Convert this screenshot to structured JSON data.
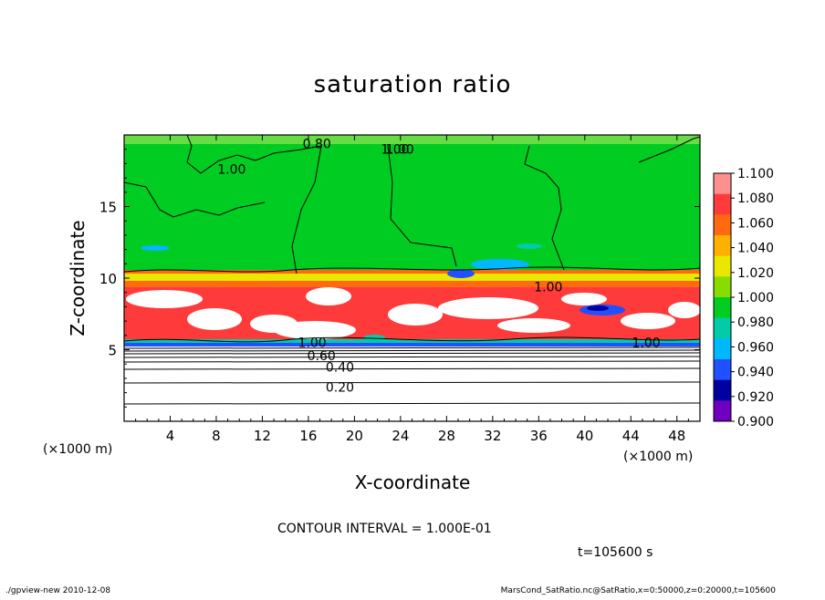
{
  "chart_data": {
    "type": "heatmap",
    "title": "saturation ratio",
    "xlabel": "X-coordinate",
    "ylabel": "Z-coordinate",
    "x_unit": "(×1000 m)",
    "y_unit": "(×1000 m)",
    "xlim": [
      0,
      50
    ],
    "ylim": [
      0,
      20
    ],
    "x_ticks": [
      "4",
      "8",
      "12",
      "16",
      "20",
      "24",
      "28",
      "32",
      "36",
      "40",
      "44",
      "48"
    ],
    "y_ticks": [
      "5",
      "10",
      "15"
    ],
    "colorbar": {
      "range": [
        0.9,
        1.1
      ],
      "labels": [
        "1.100",
        "1.080",
        "1.060",
        "1.040",
        "1.020",
        "1.000",
        "0.980",
        "0.960",
        "0.940",
        "0.920",
        "0.900"
      ],
      "colors": [
        "#ff9090",
        "#ff3a3a",
        "#ff6a10",
        "#ffb000",
        "#e8e800",
        "#88dd00",
        "#00cc22",
        "#00ccaa",
        "#00b8ff",
        "#2050ff",
        "#0000a0",
        "#7000c0"
      ]
    },
    "contour_labels": [
      "0.80",
      "1.00",
      "1.00",
      "1.00",
      "1.00",
      "1.00",
      "0.60",
      "0.40",
      "0.20",
      "1.00"
    ],
    "contour_interval_text": "CONTOUR INTERVAL = 1.000E-01",
    "time_text": "t=105600 s",
    "footer_left": "./gpview-new   2010-12-08",
    "footer_right": "MarsCond_SatRatio.nc@SatRatio,x=0:50000,z=0:20000,t=105600"
  }
}
